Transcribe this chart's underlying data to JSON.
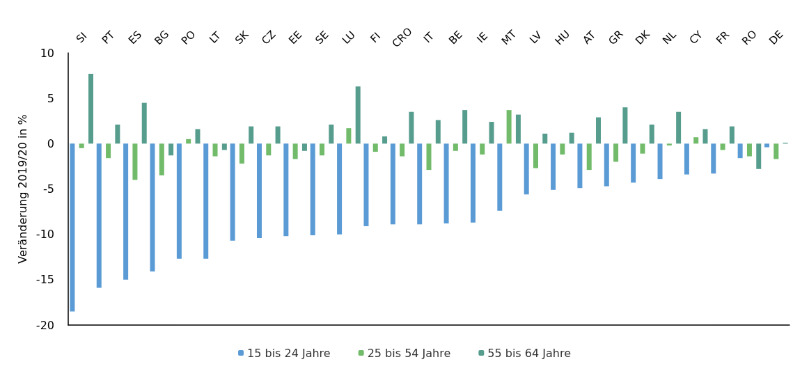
{
  "chart_data": {
    "type": "bar",
    "ylabel": "Veränderung 2019/20 in %",
    "categories": [
      "SI",
      "PT",
      "ES",
      "BG",
      "PO",
      "LT",
      "SK",
      "CZ",
      "EE",
      "SE",
      "LU",
      "FI",
      "CRO",
      "IT",
      "BE",
      "IE",
      "MT",
      "LV",
      "HU",
      "AT",
      "GR",
      "DK",
      "NL",
      "CY",
      "FR",
      "RO",
      "DE"
    ],
    "series": [
      {
        "name": "15 bis 24 Jahre",
        "color": "#5b9bd5",
        "values": [
          -18.5,
          -15.9,
          -15.0,
          -14.1,
          -12.7,
          -12.7,
          -10.7,
          -10.4,
          -10.2,
          -10.1,
          -10.0,
          -9.1,
          -8.9,
          -8.9,
          -8.8,
          -8.7,
          -7.4,
          -5.6,
          -5.1,
          -4.9,
          -4.7,
          -4.3,
          -3.9,
          -3.4,
          -3.3,
          -1.6,
          -0.4
        ]
      },
      {
        "name": "25 bis 54 Jahre",
        "color": "#71bb6a",
        "values": [
          -0.5,
          -1.6,
          -4.0,
          -3.5,
          0.5,
          -1.4,
          -2.2,
          -1.3,
          -1.7,
          -1.3,
          1.7,
          -0.9,
          -1.4,
          -2.9,
          -0.8,
          -1.2,
          3.7,
          -2.7,
          -1.2,
          -2.9,
          -2.0,
          -1.1,
          -0.2,
          0.7,
          -0.7,
          -1.4,
          -1.7
        ]
      },
      {
        "name": "55 bis 64 Jahre",
        "color": "#579d8d",
        "values": [
          7.7,
          2.1,
          4.5,
          -1.3,
          1.6,
          -0.7,
          1.9,
          1.9,
          -0.8,
          2.1,
          6.3,
          0.8,
          3.5,
          2.6,
          3.7,
          2.4,
          3.2,
          1.1,
          1.2,
          2.9,
          4.0,
          2.1,
          3.5,
          1.6,
          1.9,
          -2.8,
          0.1
        ]
      }
    ],
    "ylim": [
      -20,
      10
    ],
    "yticks": [
      -20,
      -15,
      -10,
      -5,
      0,
      5,
      10
    ],
    "grid": false,
    "legend": "bottom"
  }
}
